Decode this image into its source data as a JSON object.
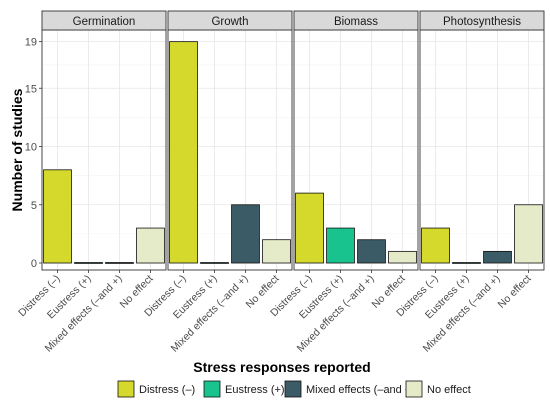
{
  "chart_data": {
    "type": "bar",
    "ylabel": "Number of studies",
    "xlabel": "Stress responses reported",
    "y_ticks": [
      0,
      5,
      10,
      15,
      19
    ],
    "ylim": [
      -0.6,
      20
    ],
    "grid": true,
    "legend_position": "bottom",
    "categories": [
      "Distress (–)",
      "Eustress (+)",
      "Mixed effects (–and +)",
      "No effect"
    ],
    "colors": [
      "#d4d92c",
      "#19c38d",
      "#3b5b66",
      "#e5ebc9"
    ],
    "panels": [
      {
        "name": "Germination",
        "values": [
          8,
          0,
          0,
          3
        ]
      },
      {
        "name": "Growth",
        "values": [
          19,
          0,
          5,
          2
        ]
      },
      {
        "name": "Biomass",
        "values": [
          6,
          3,
          2,
          1
        ]
      },
      {
        "name": "Photosynthesis",
        "values": [
          3,
          0,
          1,
          5
        ]
      }
    ],
    "legend": [
      "Distress (–)",
      "Eustress (+)",
      "Mixed effects (–and +)",
      "No effect"
    ]
  }
}
